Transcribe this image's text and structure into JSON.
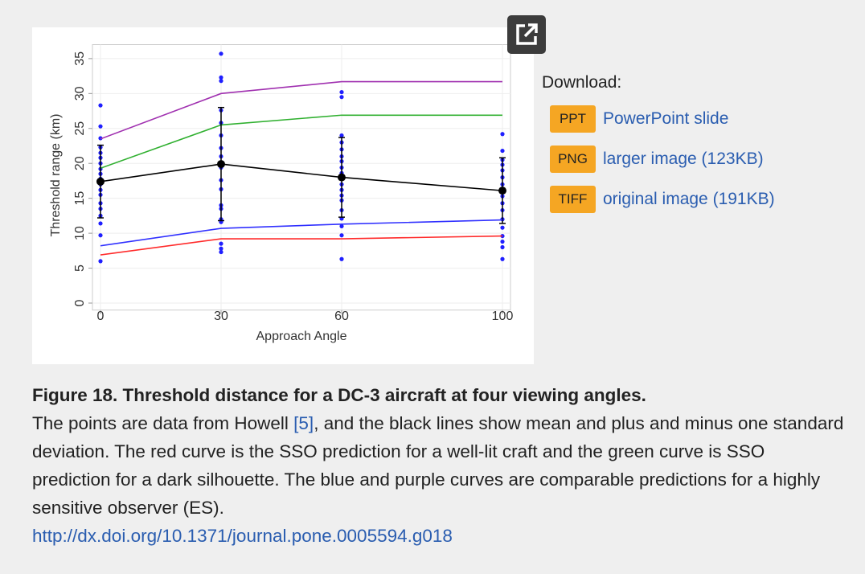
{
  "chart_data": {
    "type": "line",
    "xlabel": "Approach Angle",
    "ylabel": "Threshold range (km)",
    "x": [
      0,
      30,
      60,
      100
    ],
    "xlim": [
      -2,
      102
    ],
    "xticks": [
      0,
      30,
      60,
      100
    ],
    "ylim": [
      -1,
      37
    ],
    "yticks": [
      0,
      5,
      10,
      15,
      20,
      25,
      30,
      35
    ],
    "grid": true,
    "series": [
      {
        "type": "scatter",
        "color": "#1f1fff",
        "x": [
          0,
          0,
          0,
          0,
          0,
          0,
          0,
          0,
          0,
          0,
          0,
          0,
          0,
          0,
          0,
          0,
          0,
          0,
          0,
          30,
          30,
          30,
          30,
          30,
          30,
          30,
          30,
          30,
          30,
          30,
          30,
          30,
          30,
          30,
          30,
          30,
          30,
          60,
          60,
          60,
          60,
          60,
          60,
          60,
          60,
          60,
          60,
          60,
          60,
          60,
          60,
          60,
          60,
          60,
          60,
          60,
          100,
          100,
          100,
          100,
          100,
          100,
          100,
          100,
          100,
          100,
          100,
          100,
          100,
          100,
          100,
          100,
          100
        ],
        "values": [
          28.3,
          25.3,
          23.6,
          22.3,
          21.5,
          20.8,
          20,
          19.2,
          18.5,
          17.8,
          17,
          16.2,
          15.5,
          14.3,
          13.5,
          12.5,
          11.4,
          9.7,
          6,
          35.7,
          32.3,
          31.8,
          27.6,
          25.8,
          24,
          22.2,
          21,
          19.4,
          17.6,
          16.3,
          14,
          13.5,
          12,
          11.6,
          8.5,
          7.8,
          7.3,
          30.2,
          29.5,
          24,
          23,
          22,
          21,
          20.3,
          19.4,
          18.6,
          17.8,
          17,
          16.2,
          15.4,
          14.7,
          13.3,
          12.1,
          11,
          9.7,
          6.3,
          24.2,
          21.8,
          20.5,
          19.8,
          19,
          18,
          17,
          16,
          15.3,
          14.3,
          13.3,
          12,
          10.8,
          9.6,
          8.8,
          8,
          6.3
        ]
      },
      {
        "type": "line",
        "color": "#a030b0",
        "values": [
          23.5,
          30,
          31.7,
          31.7
        ]
      },
      {
        "type": "line",
        "color": "#30b030",
        "values": [
          19.3,
          25.5,
          26.9,
          26.9
        ]
      },
      {
        "type": "errorline",
        "color": "#000000",
        "values": [
          17.4,
          19.9,
          18.0,
          16.1
        ],
        "errors": [
          5.2,
          8.1,
          5.7,
          4.7
        ]
      },
      {
        "type": "line",
        "color": "#3030ff",
        "values": [
          8.2,
          10.7,
          11.3,
          11.9
        ]
      },
      {
        "type": "line",
        "color": "#ff2a2a",
        "values": [
          6.9,
          9.2,
          9.2,
          9.6
        ]
      }
    ]
  },
  "download": {
    "heading": "Download:",
    "items": [
      {
        "badge": "PPT",
        "label": "PowerPoint slide"
      },
      {
        "badge": "PNG",
        "label": "larger image (123KB)"
      },
      {
        "badge": "TIFF",
        "label": "original image (191KB)"
      }
    ]
  },
  "caption": {
    "title": "Figure 18. Threshold distance for a DC-3 aircraft at four viewing angles.",
    "text_before": "The points are data from Howell ",
    "reference": "[5]",
    "text_after": ", and the black lines show mean and plus and minus one standard deviation. The red curve is the SSO prediction for a well-lit craft and the green curve is SSO prediction for a dark silhouette. The blue and purple curves are comparable predictions for a highly sensitive observer (ES).",
    "doi": "http://dx.doi.org/10.1371/journal.pone.0005594.g018"
  }
}
